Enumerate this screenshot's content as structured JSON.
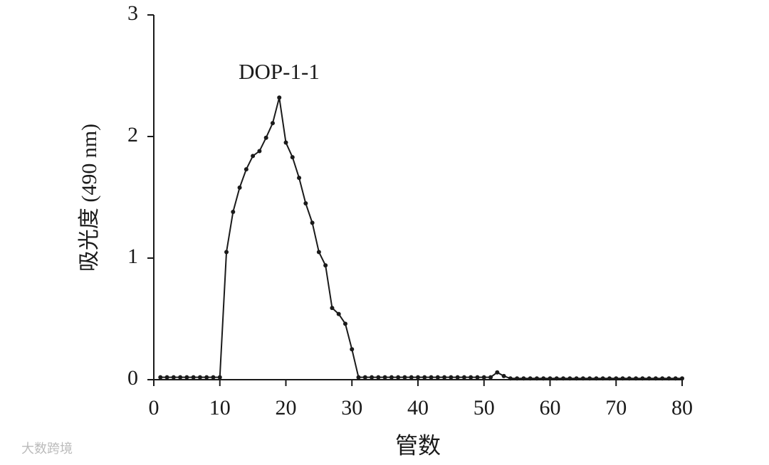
{
  "chart_data": {
    "type": "line",
    "annotation": "DOP-1-1",
    "xlabel": "管数",
    "ylabel": "吸光度 (490 nm)",
    "watermark": "大数跨境",
    "color": "#1a1a1a",
    "x": [
      1,
      2,
      3,
      4,
      5,
      6,
      7,
      8,
      9,
      10,
      11,
      12,
      13,
      14,
      15,
      16,
      17,
      18,
      19,
      20,
      21,
      22,
      23,
      24,
      25,
      26,
      27,
      28,
      29,
      30,
      31,
      32,
      33,
      34,
      35,
      36,
      37,
      38,
      39,
      40,
      41,
      42,
      43,
      44,
      45,
      46,
      47,
      48,
      49,
      50,
      51,
      52,
      53,
      54,
      55,
      56,
      57,
      58,
      59,
      60,
      61,
      62,
      63,
      64,
      65,
      66,
      67,
      68,
      69,
      70,
      71,
      72,
      73,
      74,
      75,
      76,
      77,
      78,
      79,
      80
    ],
    "values": [
      0.02,
      0.02,
      0.02,
      0.02,
      0.02,
      0.02,
      0.02,
      0.02,
      0.02,
      0.02,
      1.05,
      1.38,
      1.58,
      1.73,
      1.84,
      1.88,
      1.99,
      2.11,
      2.32,
      1.95,
      1.83,
      1.66,
      1.45,
      1.29,
      1.05,
      0.94,
      0.59,
      0.54,
      0.46,
      0.25,
      0.02,
      0.02,
      0.02,
      0.02,
      0.02,
      0.02,
      0.02,
      0.02,
      0.02,
      0.02,
      0.02,
      0.02,
      0.02,
      0.02,
      0.02,
      0.02,
      0.02,
      0.02,
      0.02,
      0.02,
      0.02,
      0.06,
      0.03,
      0.01,
      0.01,
      0.01,
      0.01,
      0.01,
      0.01,
      0.01,
      0.01,
      0.01,
      0.01,
      0.01,
      0.01,
      0.01,
      0.01,
      0.01,
      0.01,
      0.01,
      0.01,
      0.01,
      0.01,
      0.01,
      0.01,
      0.01,
      0.01,
      0.01,
      0.01,
      0.01
    ],
    "xlim": [
      0,
      80
    ],
    "xticks": [
      0,
      10,
      20,
      30,
      40,
      50,
      60,
      70,
      80
    ],
    "ylim": [
      0,
      3
    ],
    "yticks": [
      0,
      1,
      2,
      3
    ]
  }
}
